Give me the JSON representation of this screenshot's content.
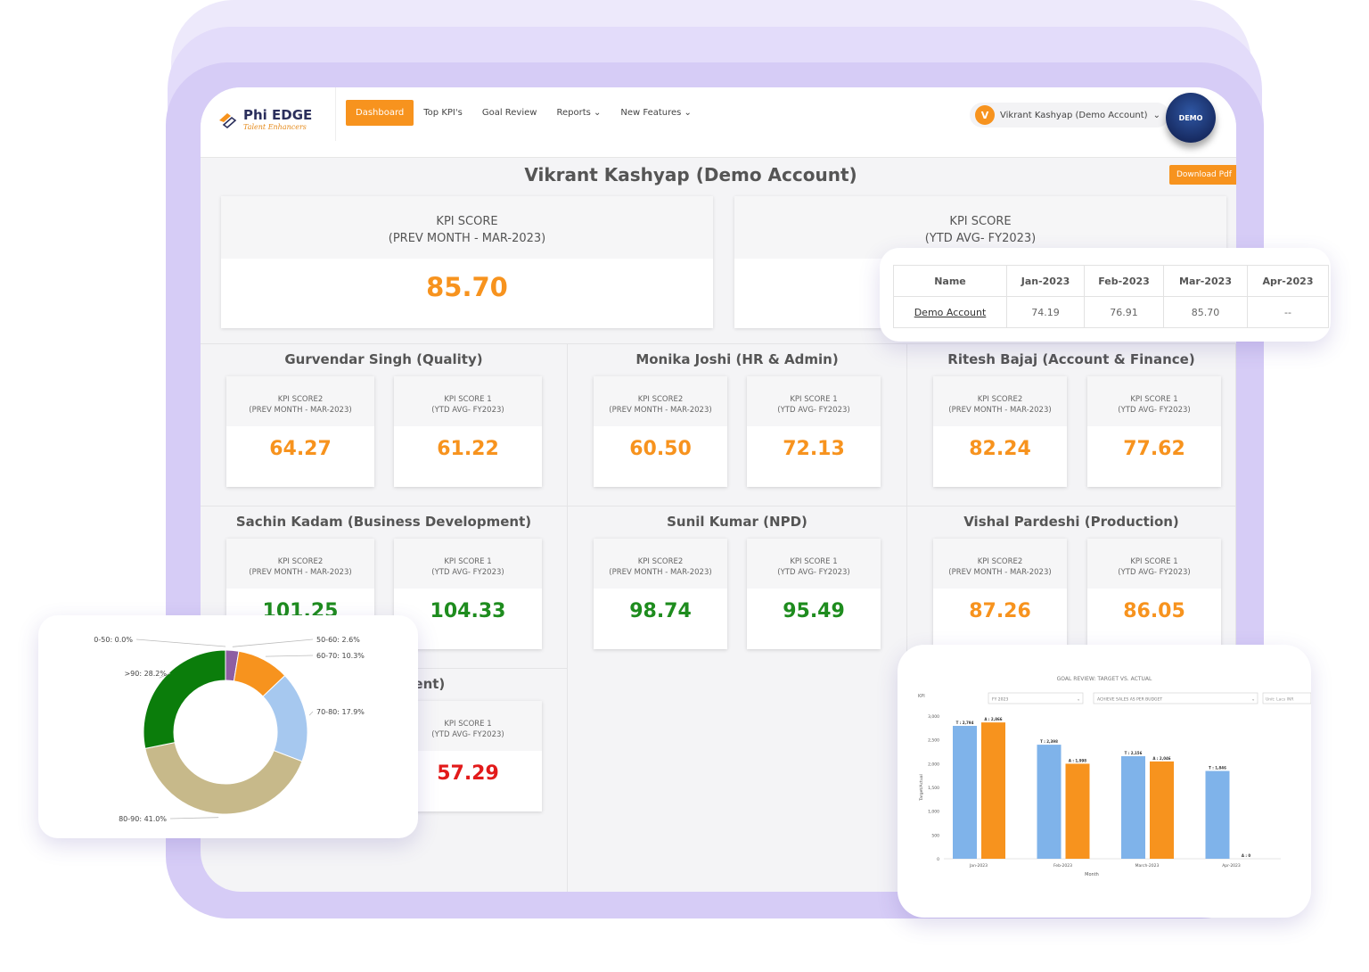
{
  "header": {
    "logo_title": "Phi EDGE",
    "logo_subtitle": "Talent Enhancers",
    "nav": [
      {
        "label": "Dashboard",
        "active": true
      },
      {
        "label": "Top KPI's"
      },
      {
        "label": "Goal Review"
      },
      {
        "label": "Reports ⌄"
      },
      {
        "label": "New Features ⌄"
      }
    ],
    "user_initial": "V",
    "user_name": "Vikrant Kashyap (Demo Account)",
    "user_caret": "⌄",
    "badge_text": "DEMO"
  },
  "page": {
    "title": "Vikrant Kashyap (Demo Account)",
    "download_label": "Download Pdf"
  },
  "main_cards": [
    {
      "line1": "KPI SCORE",
      "line2": "(PREV MONTH - MAR-2023)",
      "value": "85.70"
    },
    {
      "line1": "KPI SCORE",
      "line2": "(YTD AVG- FY2023)",
      "value": ""
    }
  ],
  "people": [
    {
      "name": "Gurvendar Singh (Quality)",
      "score2": "64.27",
      "score2_color": "orange",
      "score1": "61.22",
      "score1_color": "orange"
    },
    {
      "name": "Monika Joshi (HR & Admin)",
      "score2": "60.50",
      "score2_color": "orange",
      "score1": "72.13",
      "score1_color": "orange"
    },
    {
      "name": "Ritesh Bajaj (Account & Finance)",
      "score2": "82.24",
      "score2_color": "orange",
      "score1": "77.62",
      "score1_color": "orange"
    },
    {
      "name": "Sachin Kadam (Business Development)",
      "score2": "101.25",
      "score2_color": "green",
      "score1": "104.33",
      "score1_color": "green"
    },
    {
      "name": "Sunil Kumar (NPD)",
      "score2": "98.74",
      "score2_color": "green",
      "score1": "95.49",
      "score1_color": "green"
    },
    {
      "name": "Vishal Pardeshi (Production)",
      "score2": "87.26",
      "score2_color": "orange",
      "score1": "86.05",
      "score1_color": "orange"
    },
    {
      "name": "& Development)",
      "score2": "",
      "score2_color": "red",
      "score1": "57.29",
      "score1_color": "red"
    }
  ],
  "card_labels": {
    "score2_l1": "KPI SCORE2",
    "score2_l2": "(PREV MONTH - MAR-2023)",
    "score1_l1": "KPI SCORE 1",
    "score1_l2": "(YTD AVG- FY2023)"
  },
  "ytd_table": {
    "headers": [
      "Name",
      "Jan-2023",
      "Feb-2023",
      "Mar-2023",
      "Apr-2023"
    ],
    "row": [
      "Demo Account",
      "74.19",
      "76.91",
      "85.70",
      "--"
    ]
  },
  "chart_data": [
    {
      "type": "pie",
      "categories": [
        "0-50",
        "50-60",
        "60-70",
        "70-80",
        "80-90",
        ">90"
      ],
      "values": [
        0.0,
        2.6,
        10.3,
        17.9,
        41.0,
        28.2
      ],
      "labels": [
        "0-50: 0.0%",
        "50-60: 2.6%",
        "60-70: 10.3%",
        "70-80: 17.9%",
        "80-90: 41.0%",
        ">90: 28.2%"
      ],
      "colors": [
        "#8e5ea2",
        "#8e5ea2",
        "#f7931e",
        "#a6c8ef",
        "#c7b98a",
        "#0b7d0b"
      ],
      "donut": true
    },
    {
      "type": "bar",
      "title": "GOAL REVIEW: TARGET VS. ACTUAL",
      "filters": {
        "kpi_label": "KPI",
        "year": "FY 2023",
        "goal": "ACHIEVE SALES AS PER BUDGET",
        "unit": "Unit: Lacs INR"
      },
      "categories": [
        "Jan-2023",
        "Feb-2023",
        "March-2023",
        "Apr-2023"
      ],
      "series": [
        {
          "name": "T",
          "color": "#7fb3ea",
          "values": [
            2794,
            2398,
            2156,
            1846
          ],
          "labels": [
            "T : 2,794",
            "T : 2,398",
            "T : 2,156",
            "T : 1,846"
          ]
        },
        {
          "name": "A",
          "color": "#f7931e",
          "values": [
            2866,
            1998,
            2046,
            0
          ],
          "labels": [
            "A : 2,866",
            "A : 1,998",
            "A : 2,046",
            "A : 0"
          ]
        }
      ],
      "xlabel": "Month",
      "ylabel": "Target/Actual",
      "ylim": [
        0,
        3000
      ],
      "yticks": [
        "0",
        "500",
        "1,000",
        "1,500",
        "2,000",
        "2,500",
        "3,000"
      ]
    }
  ]
}
